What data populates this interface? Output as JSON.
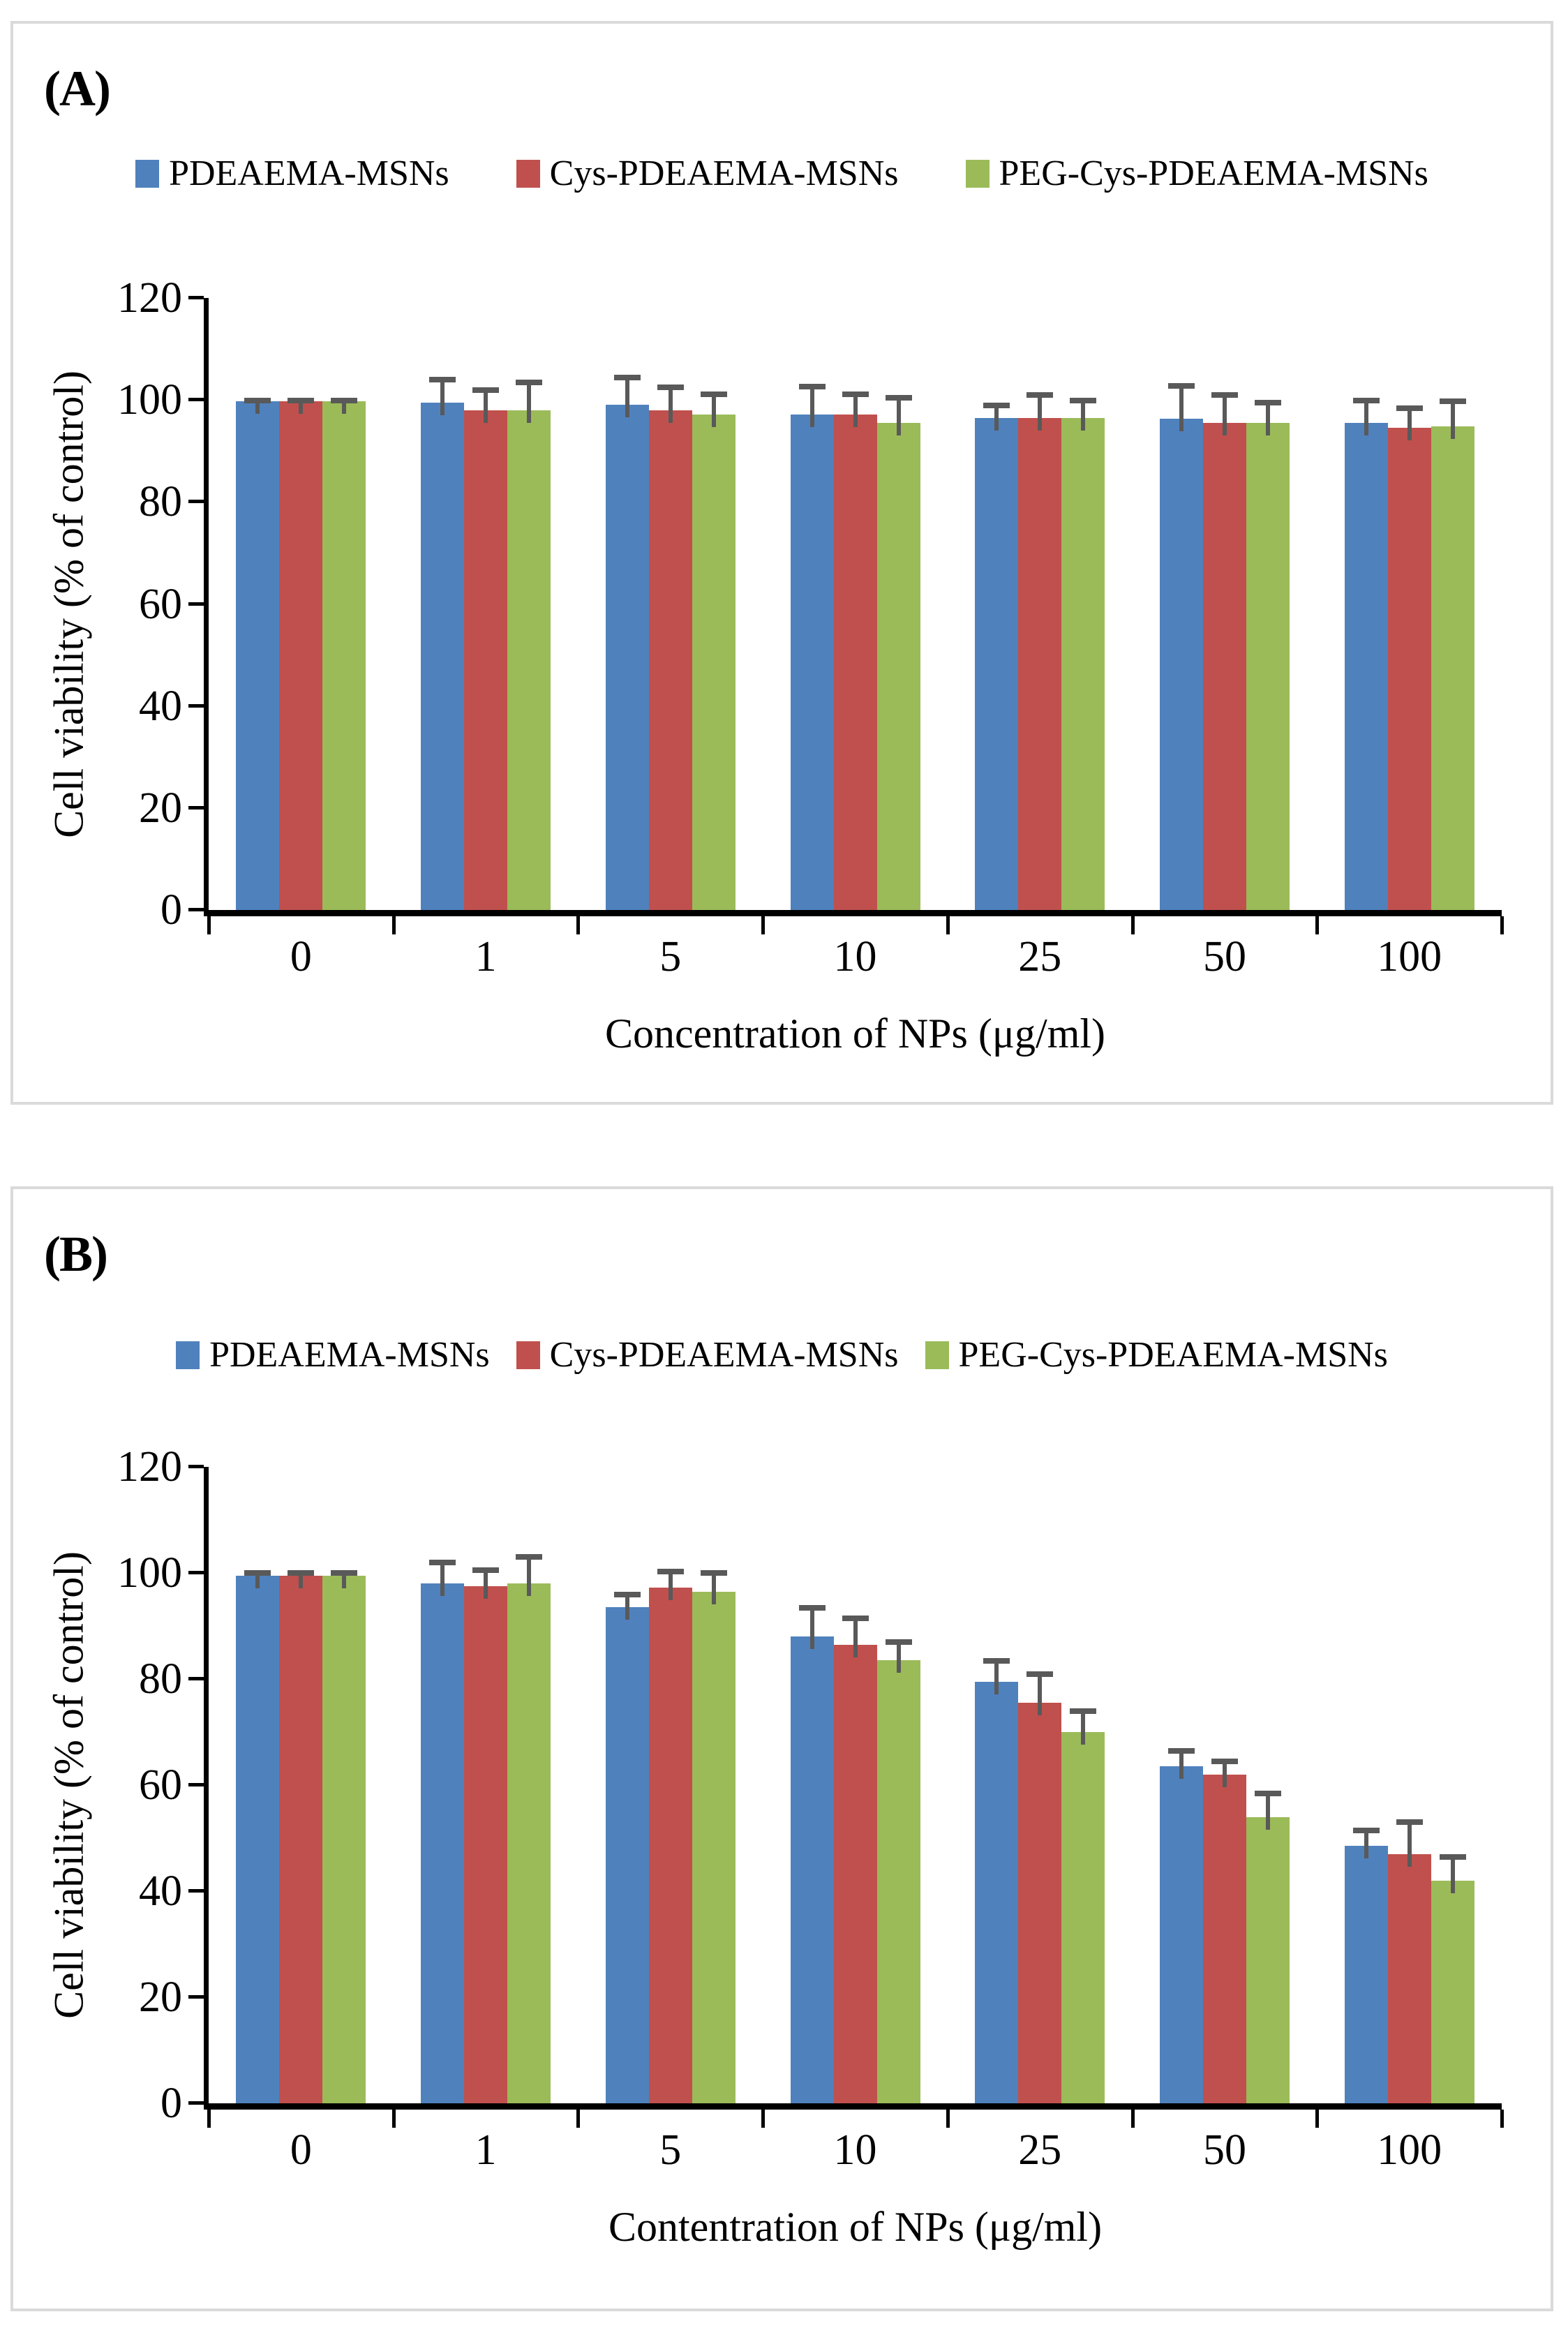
{
  "figure": {
    "colors": {
      "series_blue": "#4F81BD",
      "series_red": "#C0504D",
      "series_green": "#9BBB59",
      "error_bar": "#595959",
      "axis": "#000000",
      "panel_border": "#DADADA"
    },
    "panels": [
      {
        "label": "(A)",
        "chart_data": {
          "type": "bar",
          "title": "",
          "xlabel": "Concentration of NPs (μg/ml)",
          "ylabel": "Cell viability (% of control)",
          "ylim": [
            0,
            120
          ],
          "yticks": [
            0,
            20,
            40,
            60,
            80,
            100,
            120
          ],
          "grid": "off",
          "legend_position": "top-center",
          "categories": [
            "0",
            "1",
            "5",
            "10",
            "25",
            "50",
            "100"
          ],
          "series": [
            {
              "name": "PDEAEMA-MSNs",
              "color": "#4F81BD",
              "values": [
                99.7,
                99.5,
                99.0,
                97.2,
                96.5,
                96.3,
                95.5
              ],
              "errors": [
                0.8,
                5.0,
                6.0,
                6.0,
                3.0,
                7.0,
                5.0
              ]
            },
            {
              "name": "Cys-PDEAEMA-MSNs",
              "color": "#C0504D",
              "values": [
                99.7,
                98.0,
                98.0,
                97.2,
                96.5,
                95.5,
                94.5
              ],
              "errors": [
                0.8,
                4.5,
                5.0,
                4.5,
                5.0,
                6.0,
                4.5
              ]
            },
            {
              "name": "PEG-Cys-PDEAEMA-MSNs",
              "color": "#9BBB59",
              "values": [
                99.7,
                98.0,
                97.2,
                95.5,
                96.5,
                95.5,
                94.8
              ],
              "errors": [
                0.8,
                6.0,
                4.5,
                5.5,
                4.0,
                4.5,
                5.5
              ]
            }
          ]
        }
      },
      {
        "label": "(B)",
        "chart_data": {
          "type": "bar",
          "title": "",
          "xlabel": "Contentration of NPs (μg/ml)",
          "ylabel": "Cell viability (% of control)",
          "ylim": [
            0,
            120
          ],
          "yticks": [
            0,
            20,
            40,
            60,
            80,
            100,
            120
          ],
          "grid": "off",
          "legend_position": "top-center",
          "categories": [
            "0",
            "1",
            "5",
            "10",
            "25",
            "50",
            "100"
          ],
          "series": [
            {
              "name": "PDEAEMA-MSNs",
              "color": "#4F81BD",
              "values": [
                99.5,
                98.0,
                93.5,
                88.0,
                79.5,
                63.5,
                48.5
              ],
              "errors": [
                1.0,
                4.5,
                3.0,
                6.0,
                4.5,
                3.5,
                3.5
              ]
            },
            {
              "name": "Cys-PDEAEMA-MSNs",
              "color": "#C0504D",
              "values": [
                99.5,
                97.5,
                97.3,
                86.5,
                75.5,
                62.0,
                47.0
              ],
              "errors": [
                1.0,
                3.5,
                3.5,
                5.5,
                6.0,
                3.0,
                6.5
              ]
            },
            {
              "name": "PEG-Cys-PDEAEMA-MSNs",
              "color": "#9BBB59",
              "values": [
                99.5,
                98.0,
                96.5,
                83.5,
                70.0,
                54.0,
                42.0
              ],
              "errors": [
                1.0,
                5.5,
                4.0,
                4.0,
                4.5,
                5.0,
                5.0
              ]
            }
          ]
        }
      }
    ]
  }
}
